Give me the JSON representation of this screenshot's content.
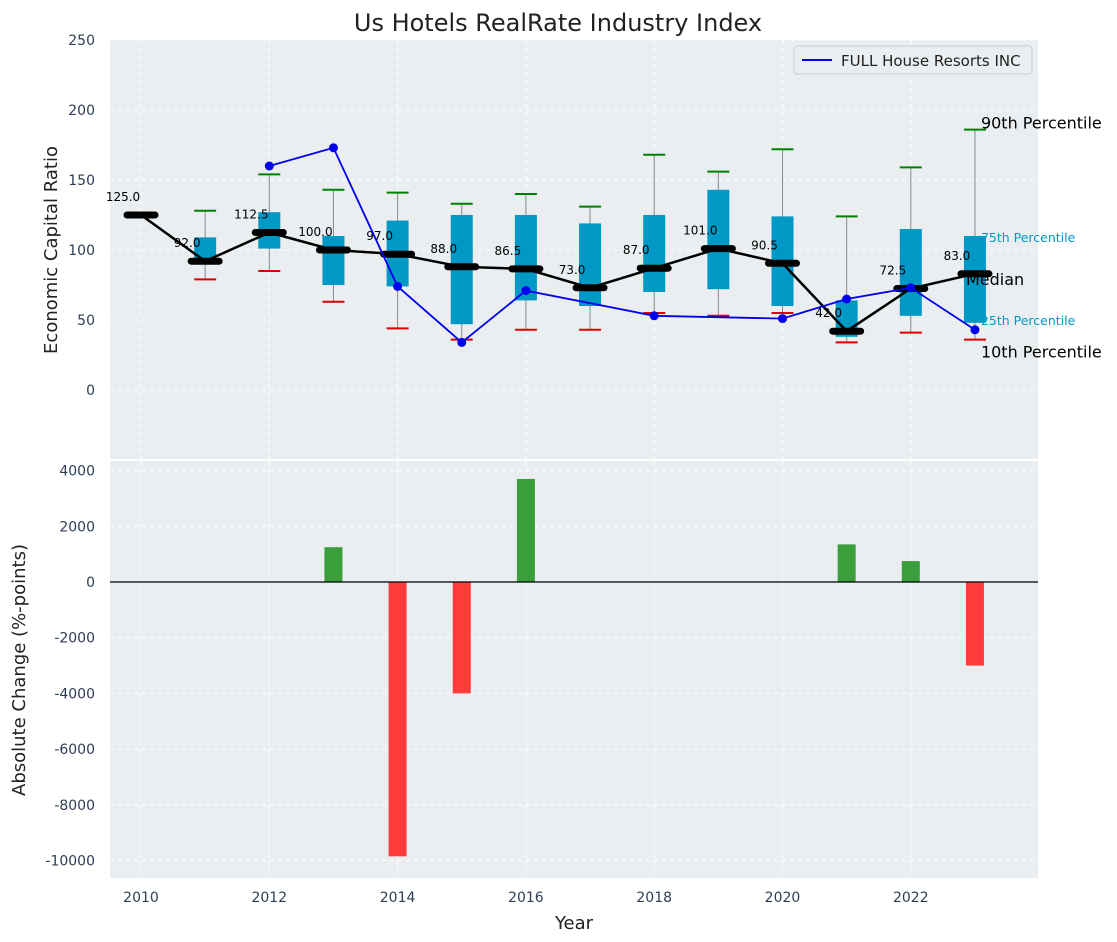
{
  "chart_data": [
    {
      "type": "box",
      "title": "Us Hotels RealRate Industry Index",
      "ylabel": "Economic Capital Ratio",
      "ylim": [
        -50,
        250
      ],
      "yticks": [
        0,
        50,
        100,
        150,
        200,
        250
      ],
      "grid": true,
      "legend": {
        "placement": "top-right",
        "entries": [
          "FULL House Resorts INC"
        ]
      },
      "colors": {
        "box": "#0099c6",
        "median_line": "#000000",
        "company": "#0000ee",
        "p90_cap": "#008000",
        "p10_cap": "#dd0000",
        "whisker": "#888888",
        "background": "#eaeef0"
      },
      "years": [
        2010,
        2011,
        2012,
        2013,
        2014,
        2015,
        2016,
        2017,
        2018,
        2019,
        2020,
        2021,
        2022,
        2023
      ],
      "median": [
        125.0,
        92.0,
        112.5,
        100.0,
        97.0,
        88.0,
        86.5,
        73.0,
        87.0,
        101.0,
        90.5,
        42.0,
        72.5,
        83.0
      ],
      "median_labels": [
        "125.0",
        "92.0",
        "112.5",
        "100.0",
        "97.0",
        "88.0",
        "86.5",
        "73.0",
        "87.0",
        "101.0",
        "90.5",
        "42.0",
        "72.5",
        "83.0"
      ],
      "q1": [
        125,
        90,
        101,
        75,
        74,
        47,
        64,
        60,
        70,
        72,
        60,
        38,
        53,
        48
      ],
      "q3": [
        125,
        109,
        127,
        110,
        121,
        125,
        125,
        119,
        125,
        143,
        124,
        64,
        115,
        110
      ],
      "p10": [
        125,
        79,
        85,
        63,
        44,
        36,
        43,
        43,
        55,
        53,
        55,
        34,
        41,
        36
      ],
      "p90": [
        125,
        128,
        154,
        143,
        141,
        133,
        140,
        131,
        168,
        156,
        172,
        124,
        159,
        186
      ],
      "company": {
        "name": "FULL House Resorts INC",
        "years": [
          2012,
          2013,
          2014,
          2015,
          2016,
          2018,
          2020,
          2021,
          2022,
          2023
        ],
        "values": [
          160,
          173,
          74,
          34,
          71,
          53,
          51,
          65,
          73,
          43
        ]
      },
      "annotations": {
        "p90": "90th Percentile",
        "q3": "75th Percentile",
        "median": "Median",
        "q1": "25th Percentile",
        "p10": "10th Percentile"
      }
    },
    {
      "type": "bar",
      "xlabel": "Year",
      "ylabel": "Absolute Change (%-points)",
      "ylim": [
        -10500,
        4400
      ],
      "yticks": [
        -10000,
        -8000,
        -6000,
        -4000,
        -2000,
        0,
        2000,
        4000
      ],
      "xticks": [
        2010,
        2012,
        2014,
        2016,
        2018,
        2020,
        2022
      ],
      "grid": true,
      "colors": {
        "positive": "#3a9e3a",
        "negative": "#ff3b3b"
      },
      "bars": [
        {
          "year": 2013,
          "value": 1250
        },
        {
          "year": 2014,
          "value": -9850
        },
        {
          "year": 2015,
          "value": -4000
        },
        {
          "year": 2016,
          "value": 3700
        },
        {
          "year": 2021,
          "value": 1350
        },
        {
          "year": 2022,
          "value": 750
        },
        {
          "year": 2023,
          "value": -3000
        }
      ]
    }
  ]
}
